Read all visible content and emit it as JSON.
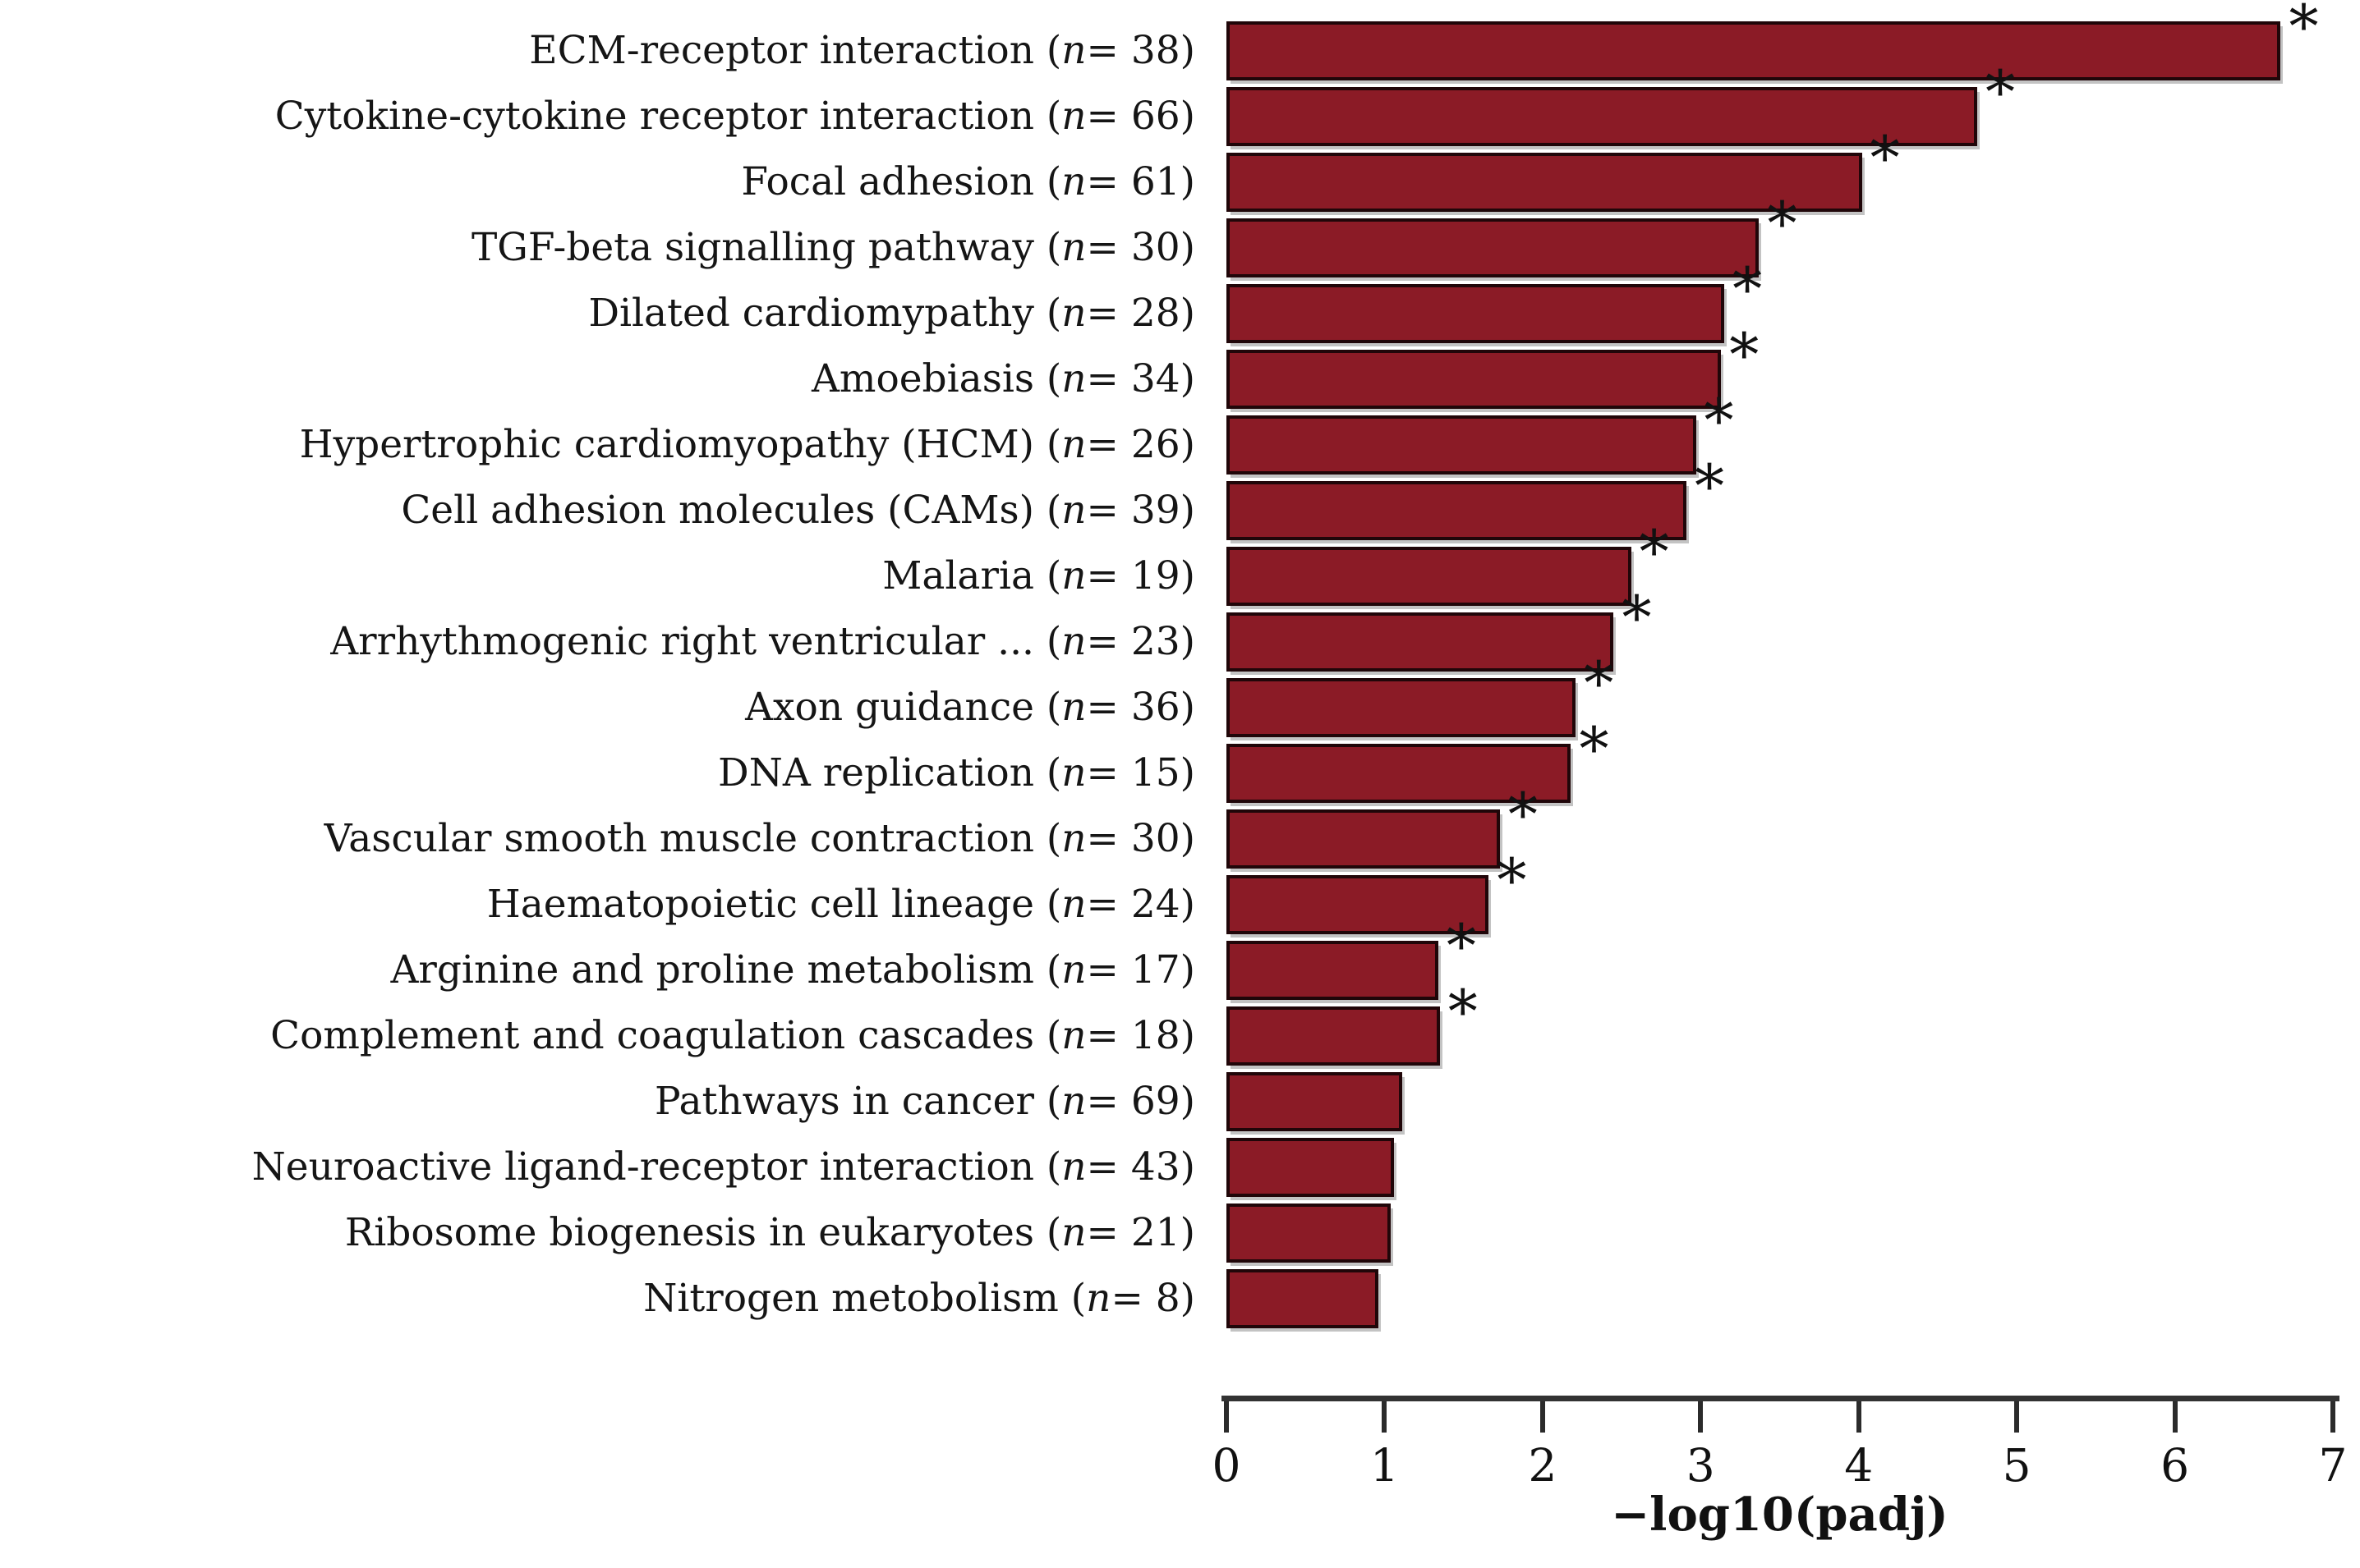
{
  "chart_data": {
    "type": "bar",
    "orientation": "horizontal",
    "title": "",
    "xlabel": "−log10(padj)",
    "ylabel": "",
    "xlim": [
      0,
      7
    ],
    "xticks": [
      0,
      1,
      2,
      3,
      4,
      5,
      6,
      7
    ],
    "grid": false,
    "legend": "none",
    "significance_marker": "*",
    "bar_color": "#8B1B26",
    "bar_border_color": "#200609",
    "categories": [
      {
        "label": "ECM-receptor interaction",
        "n": 38,
        "value": 6.67,
        "significant": true
      },
      {
        "label": "Cytokine-cytokine receptor interaction",
        "n": 66,
        "value": 4.75,
        "significant": true
      },
      {
        "label": "Focal adhesion",
        "n": 61,
        "value": 4.02,
        "significant": true
      },
      {
        "label": "TGF-beta signalling pathway",
        "n": 30,
        "value": 3.37,
        "significant": true
      },
      {
        "label": "Dilated cardiomypathy",
        "n": 28,
        "value": 3.15,
        "significant": true
      },
      {
        "label": "Amoebiasis",
        "n": 34,
        "value": 3.13,
        "significant": true
      },
      {
        "label": "Hypertrophic cardiomyopathy (HCM)",
        "n": 26,
        "value": 2.97,
        "significant": true
      },
      {
        "label": "Cell adhesion molecules (CAMs)",
        "n": 39,
        "value": 2.91,
        "significant": true
      },
      {
        "label": "Malaria",
        "n": 19,
        "value": 2.56,
        "significant": true
      },
      {
        "label": "Arrhythmogenic right ventricular ...",
        "n": 23,
        "value": 2.45,
        "significant": true
      },
      {
        "label": "Axon guidance",
        "n": 36,
        "value": 2.21,
        "significant": true
      },
      {
        "label": "DNA replication",
        "n": 15,
        "value": 2.18,
        "significant": true
      },
      {
        "label": "Vascular smooth muscle contraction",
        "n": 30,
        "value": 1.73,
        "significant": true
      },
      {
        "label": "Haematopoietic cell lineage",
        "n": 24,
        "value": 1.66,
        "significant": true
      },
      {
        "label": "Arginine and proline metabolism",
        "n": 17,
        "value": 1.34,
        "significant": true
      },
      {
        "label": "Complement and coagulation cascades",
        "n": 18,
        "value": 1.35,
        "significant": true
      },
      {
        "label": "Pathways in cancer",
        "n": 69,
        "value": 1.11,
        "significant": false
      },
      {
        "label": "Neuroactive ligand-receptor interaction",
        "n": 43,
        "value": 1.06,
        "significant": false
      },
      {
        "label": "Ribosome biogenesis in eukaryotes",
        "n": 21,
        "value": 1.04,
        "significant": false
      },
      {
        "label": "Nitrogen metobolism",
        "n": 8,
        "value": 0.96,
        "significant": false
      }
    ]
  }
}
